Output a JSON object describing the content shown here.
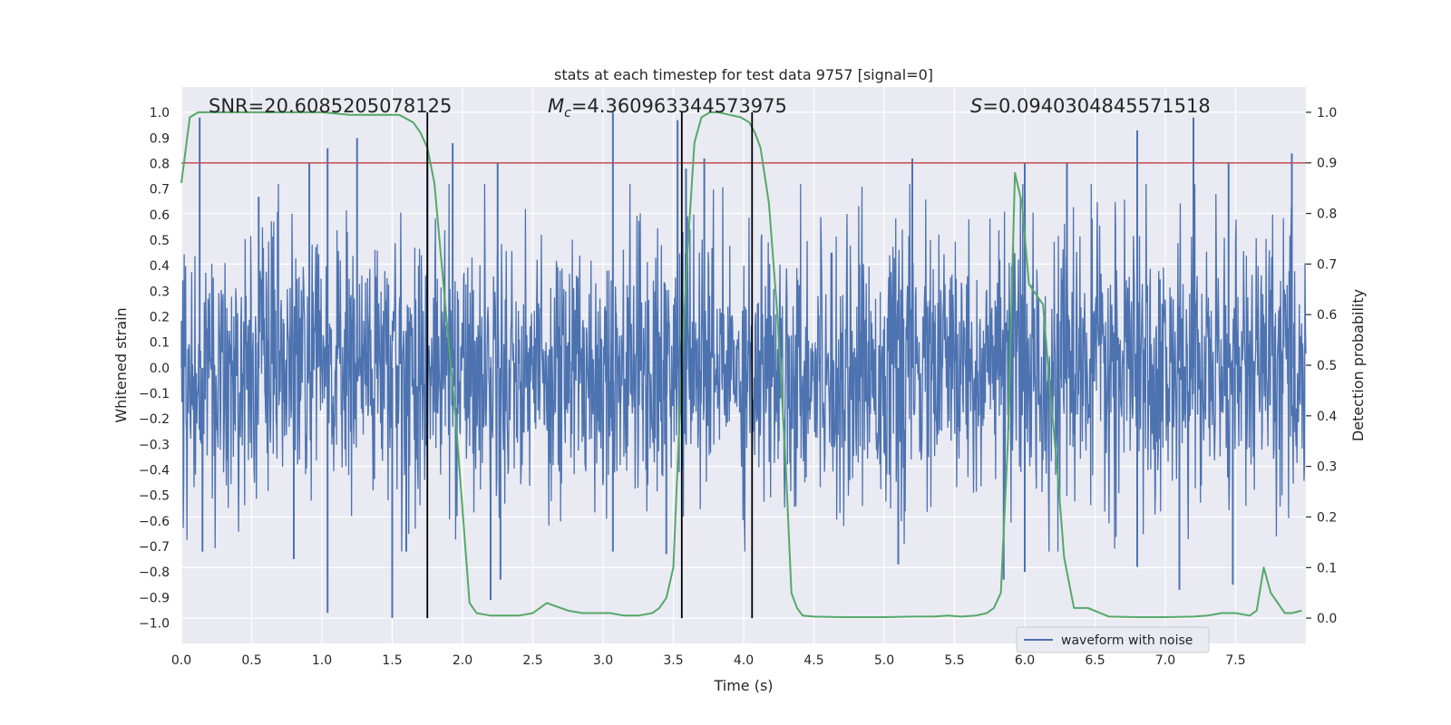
{
  "chart_data": {
    "type": "line",
    "title": "stats at each timestep for test data 9757 [signal=0]",
    "xlabel": "Time (s)",
    "ylabel_left": "Whitened strain",
    "ylabel_right": "Detection probability",
    "xlim": [
      0.0,
      8.0
    ],
    "ylim_left": [
      -1.08,
      1.1
    ],
    "ylim_right": [
      -0.05,
      1.05
    ],
    "x_ticks": [
      0.0,
      0.5,
      1.0,
      1.5,
      2.0,
      2.5,
      3.0,
      3.5,
      4.0,
      4.5,
      5.0,
      5.5,
      6.0,
      6.5,
      7.0,
      7.5
    ],
    "x_tick_labels": [
      "0.0",
      "0.5",
      "1.0",
      "1.5",
      "2.0",
      "2.5",
      "3.0",
      "3.5",
      "4.0",
      "4.5",
      "5.0",
      "5.5",
      "6.0",
      "6.5",
      "7.0",
      "7.5"
    ],
    "y_left_ticks": [
      1.0,
      0.9,
      0.8,
      0.7,
      0.6,
      0.5,
      0.4,
      0.3,
      0.2,
      0.1,
      0.0,
      -0.1,
      -0.2,
      -0.3,
      -0.4,
      -0.5,
      -0.6,
      -0.7,
      -0.8,
      -0.9,
      -1.0
    ],
    "y_left_tick_labels": [
      "1.0",
      "0.9",
      "0.8",
      "0.7",
      "0.6",
      "0.5",
      "0.4",
      "0.3",
      "0.2",
      "0.1",
      "0.0",
      "−0.1",
      "−0.2",
      "−0.3",
      "−0.4",
      "−0.5",
      "−0.6",
      "−0.7",
      "−0.8",
      "−0.9",
      "−1.0"
    ],
    "y_right_ticks": [
      1.0,
      0.9,
      0.8,
      0.7,
      0.6,
      0.5,
      0.4,
      0.3,
      0.2,
      0.1,
      0.0
    ],
    "y_right_tick_labels": [
      "1.0",
      "0.9",
      "0.8",
      "0.7",
      "0.6",
      "0.5",
      "0.4",
      "0.3",
      "0.2",
      "0.1",
      "0.0"
    ],
    "grid": true,
    "legend": {
      "placement": "lower-right",
      "entries": [
        "waveform with noise"
      ]
    },
    "annotations": {
      "snr": "SNR=20.6085205078125",
      "mc_symbol": "M",
      "mc_sub": "c",
      "mc_value": "=4.360963344573975",
      "s_symbol": "S",
      "s_value": "=0.0940304845571518"
    },
    "threshold": {
      "axis": "right",
      "value": 0.9,
      "color": "#c44e52"
    },
    "vertical_markers": [
      1.75,
      3.56,
      4.06
    ],
    "series": [
      {
        "name": "waveform with noise",
        "axis": "left",
        "color": "#4c72b0",
        "style": "dense noise band",
        "envelope_typical": 0.42,
        "peak_times": [
          0.13,
          0.55,
          0.91,
          1.04,
          1.25,
          1.75,
          1.93,
          2.25,
          3.07,
          3.53,
          3.59,
          3.72,
          5.2,
          6.0,
          6.3,
          6.8,
          7.2,
          7.45,
          7.9
        ],
        "peak_values": [
          0.98,
          0.67,
          0.8,
          0.86,
          0.9,
          0.85,
          0.88,
          0.8,
          1.0,
          0.97,
          0.78,
          0.82,
          0.82,
          0.8,
          0.8,
          0.93,
          0.98,
          0.8,
          0.84
        ],
        "trough_times": [
          0.15,
          0.8,
          1.04,
          1.5,
          1.6,
          2.2,
          2.27,
          3.07,
          3.45,
          5.1,
          5.85,
          6.0,
          6.8,
          7.1,
          7.48
        ],
        "trough_values": [
          -0.72,
          -0.75,
          -0.96,
          -0.98,
          -0.72,
          -0.91,
          -0.83,
          -0.72,
          -0.73,
          -0.77,
          -0.83,
          -0.8,
          -0.78,
          -0.87,
          -0.85
        ]
      },
      {
        "name": "",
        "axis": "right",
        "color": "#55a868",
        "x": [
          0.0,
          0.06,
          0.12,
          0.2,
          0.4,
          0.6,
          0.8,
          1.0,
          1.2,
          1.4,
          1.55,
          1.65,
          1.7,
          1.75,
          1.8,
          1.9,
          1.95,
          2.05,
          2.1,
          2.2,
          2.3,
          2.4,
          2.5,
          2.55,
          2.6,
          2.65,
          2.75,
          2.85,
          2.95,
          3.05,
          3.15,
          3.25,
          3.35,
          3.4,
          3.45,
          3.5,
          3.53,
          3.56,
          3.6,
          3.65,
          3.7,
          3.76,
          3.82,
          3.9,
          3.98,
          4.04,
          4.08,
          4.12,
          4.18,
          4.24,
          4.3,
          4.34,
          4.38,
          4.42,
          4.5,
          4.7,
          5.0,
          5.2,
          5.35,
          5.45,
          5.55,
          5.65,
          5.73,
          5.78,
          5.83,
          5.88,
          5.93,
          5.98,
          6.03,
          6.08,
          6.13,
          6.18,
          6.23,
          6.28,
          6.35,
          6.45,
          6.6,
          6.8,
          7.0,
          7.2,
          7.3,
          7.4,
          7.5,
          7.6,
          7.65,
          7.7,
          7.75,
          7.85,
          7.9,
          7.97
        ],
        "y": [
          0.86,
          0.99,
          1.0,
          1.0,
          1.0,
          1.0,
          1.0,
          1.0,
          0.995,
          0.995,
          0.995,
          0.98,
          0.96,
          0.93,
          0.86,
          0.55,
          0.4,
          0.03,
          0.01,
          0.005,
          0.005,
          0.005,
          0.01,
          0.02,
          0.03,
          0.025,
          0.015,
          0.01,
          0.01,
          0.01,
          0.005,
          0.005,
          0.01,
          0.02,
          0.04,
          0.1,
          0.3,
          0.5,
          0.72,
          0.94,
          0.99,
          1.0,
          1.0,
          0.995,
          0.99,
          0.98,
          0.96,
          0.93,
          0.82,
          0.6,
          0.3,
          0.05,
          0.02,
          0.005,
          0.003,
          0.002,
          0.002,
          0.003,
          0.003,
          0.005,
          0.003,
          0.005,
          0.01,
          0.02,
          0.05,
          0.35,
          0.88,
          0.82,
          0.66,
          0.64,
          0.62,
          0.45,
          0.3,
          0.12,
          0.02,
          0.02,
          0.003,
          0.002,
          0.002,
          0.003,
          0.005,
          0.01,
          0.01,
          0.005,
          0.015,
          0.1,
          0.05,
          0.01,
          0.01,
          0.015
        ]
      }
    ]
  }
}
